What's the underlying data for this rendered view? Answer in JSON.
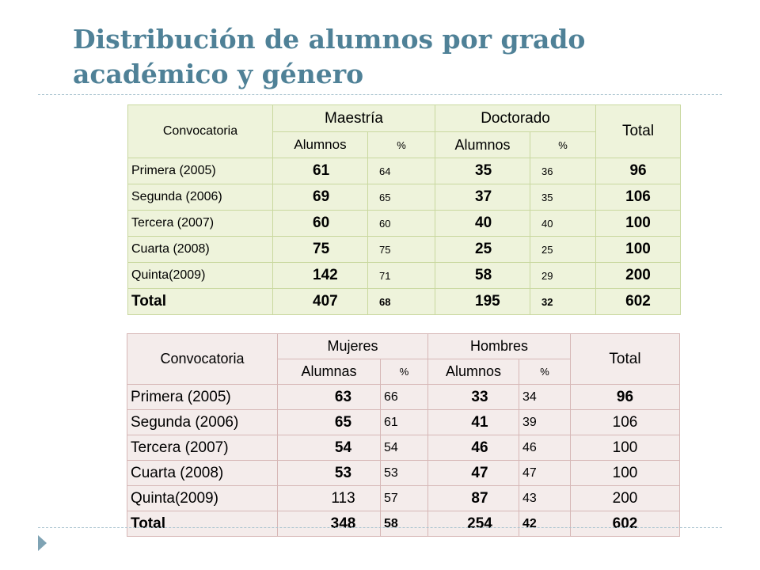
{
  "slide": {
    "title": "Distribución de alumnos por grado académico y género"
  },
  "table_grado": {
    "col_convocatoria": "Convocatoria",
    "group_a": "Maestría",
    "group_b": "Doctorado",
    "col_total": "Total",
    "sub_a_count": "Alumnos",
    "sub_a_pct": "%",
    "sub_b_count": "Alumnos",
    "sub_b_pct": "%",
    "rows": [
      {
        "label": "Primera (2005)",
        "a": "61",
        "a_pct": "64",
        "b": "35",
        "b_pct": "36",
        "total": "96"
      },
      {
        "label": "Segunda  (2006)",
        "a": "69",
        "a_pct": "65",
        "b": "37",
        "b_pct": "35",
        "total": "106"
      },
      {
        "label": "Tercera (2007)",
        "a": "60",
        "a_pct": "60",
        "b": "40",
        "b_pct": "40",
        "total": "100"
      },
      {
        "label": "Cuarta  (2008)",
        "a": "75",
        "a_pct": "75",
        "b": "25",
        "b_pct": "25",
        "total": "100"
      },
      {
        "label": "Quinta(2009)",
        "a": "142",
        "a_pct": "71",
        "b": "58",
        "b_pct": "29",
        "total": "200"
      }
    ],
    "total_row": {
      "label": "Total",
      "a": "407",
      "a_pct": "68",
      "b": "195",
      "b_pct": "32",
      "total": "602"
    }
  },
  "table_genero": {
    "col_convocatoria": "Convocatoria",
    "group_a": "Mujeres",
    "group_b": "Hombres",
    "col_total": "Total",
    "sub_a_count": "Alumnas",
    "sub_a_pct": "%",
    "sub_b_count": "Alumnos",
    "sub_b_pct": "%",
    "rows": [
      {
        "label": "Primera (2005)",
        "a": "63",
        "a_pct": "66",
        "b": "33",
        "b_pct": "34",
        "total": "96"
      },
      {
        "label": "Segunda (2006)",
        "a": "65",
        "a_pct": "61",
        "b": "41",
        "b_pct": "39",
        "total": "106"
      },
      {
        "label": "Tercera (2007)",
        "a": "54",
        "a_pct": "54",
        "b": "46",
        "b_pct": "46",
        "total": "100"
      },
      {
        "label": "Cuarta (2008)",
        "a": "53",
        "a_pct": "53",
        "b": "47",
        "b_pct": "47",
        "total": "100"
      },
      {
        "label": "Quinta(2009)",
        "a": "113",
        "a_pct": "57",
        "b": "87",
        "b_pct": "43",
        "total": "200"
      }
    ],
    "total_row": {
      "label": "Total",
      "a": "348",
      "a_pct": "58",
      "b": "254",
      "b_pct": "42",
      "total": "602"
    }
  },
  "colors": {
    "title": "#4f8197",
    "table_grado_fill": "#eef3db",
    "table_grado_border": "#c9d89f",
    "table_genero_fill": "#f4eceb",
    "table_genero_border": "#d6b7b6",
    "divider": "#a9c3cf"
  }
}
